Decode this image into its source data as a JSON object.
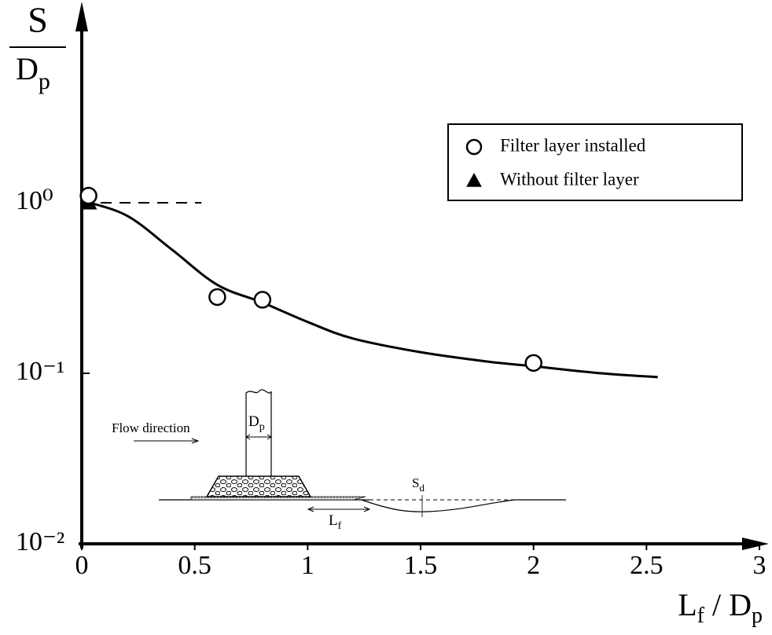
{
  "chart_data": {
    "type": "scatter",
    "y_label": {
      "numerator": "S",
      "denominator": [
        "D",
        "p"
      ]
    },
    "x_label": [
      "L",
      "f",
      " / D",
      "p"
    ],
    "xlim": [
      0,
      3
    ],
    "xticks": [
      0,
      0.5,
      1,
      1.5,
      2,
      2.5,
      3
    ],
    "ylim": [
      0.01,
      10
    ],
    "log_y": true,
    "yticks": [
      {
        "value": 1,
        "label": "10⁰"
      },
      {
        "value": 0.1,
        "label": "10⁻¹"
      },
      {
        "value": 0.01,
        "label": "10⁻²"
      }
    ],
    "series": [
      {
        "name": "Filter layer installed",
        "marker": "circle",
        "color": "#ffffff",
        "x": [
          0.03,
          0.6,
          0.8,
          2.0
        ],
        "values": [
          1.1,
          0.28,
          0.27,
          0.115
        ]
      },
      {
        "name": "Without filter layer",
        "marker": "triangle",
        "color": "#000000",
        "x": [
          0.03
        ],
        "values": [
          1.0
        ]
      }
    ],
    "fit_curve": {
      "color": "#000000",
      "x": [
        0,
        0.2,
        0.4,
        0.6,
        0.8,
        1.0,
        1.2,
        1.5,
        1.8,
        2.0,
        2.3,
        2.55
      ],
      "values": [
        1.03,
        0.84,
        0.53,
        0.33,
        0.26,
        0.2,
        0.16,
        0.133,
        0.117,
        0.11,
        0.1,
        0.095
      ]
    },
    "reference_line": {
      "x": [
        0,
        0.53
      ],
      "values": [
        1,
        1
      ]
    },
    "legend": "upper right",
    "inset_labels": {
      "flow": "Flow direction",
      "pile": [
        "D",
        "p"
      ],
      "filter": [
        "L",
        "f"
      ],
      "scour": [
        "S",
        "d"
      ]
    }
  }
}
